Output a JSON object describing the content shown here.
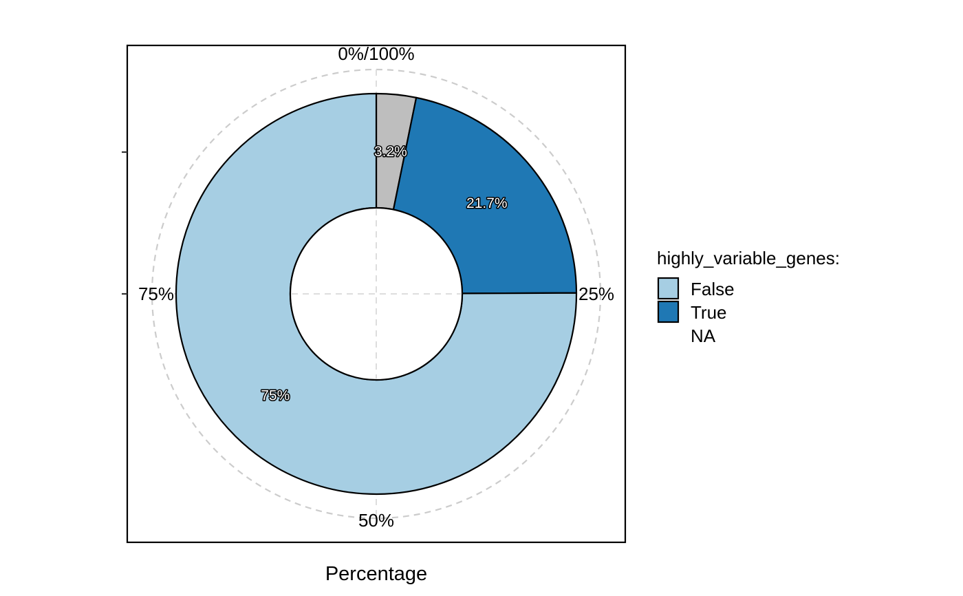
{
  "chart_data": {
    "type": "pie",
    "variant": "donut",
    "xlabel": "Percentage",
    "series": [
      {
        "name": "NA",
        "value": 3.2,
        "label": "3.2%",
        "color": "#bebebe"
      },
      {
        "name": "True",
        "value": 21.7,
        "label": "21.7%",
        "color": "#1f78b4"
      },
      {
        "name": "False",
        "value": 75,
        "label": "75%",
        "color": "#a6cee3"
      }
    ],
    "angular_ticks": [
      {
        "value": 0,
        "label": "0%/100%"
      },
      {
        "value": 25,
        "label": "25%"
      },
      {
        "value": 50,
        "label": "50%"
      },
      {
        "value": 75,
        "label": "75%"
      }
    ],
    "grid": true,
    "legend": {
      "title": "highly_variable_genes:",
      "position": "right",
      "items": [
        {
          "label": "False",
          "color": "#a6cee3",
          "swatch": true
        },
        {
          "label": "True",
          "color": "#1f78b4",
          "swatch": true
        },
        {
          "label": "NA",
          "color": "#bebebe",
          "swatch": false
        }
      ]
    }
  }
}
